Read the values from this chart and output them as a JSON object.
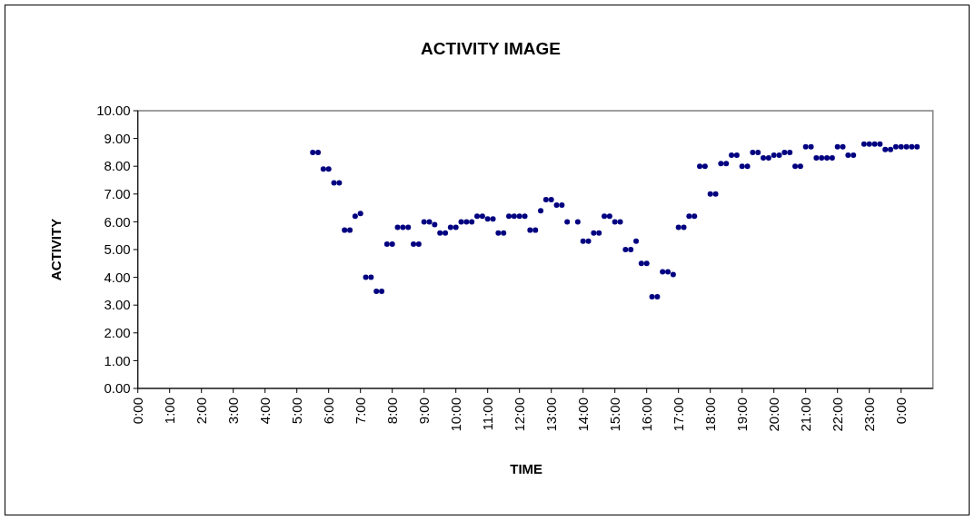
{
  "chart_data": {
    "type": "scatter",
    "title": "ACTIVITY IMAGE",
    "xlabel": "TIME",
    "ylabel": "ACTIVITY",
    "series": [
      {
        "color": "#000080",
        "x": [
          5.5,
          5.667,
          5.833,
          6,
          6.167,
          6.333,
          6.5,
          6.667,
          6.833,
          7,
          7.167,
          7.333,
          7.5,
          7.667,
          7.833,
          8,
          8.167,
          8.333,
          8.5,
          8.667,
          8.833,
          9,
          9.167,
          9.333,
          9.5,
          9.667,
          9.833,
          10,
          10.167,
          10.333,
          10.5,
          10.667,
          10.833,
          11,
          11.167,
          11.333,
          11.5,
          11.667,
          11.833,
          12,
          12.167,
          12.333,
          12.5,
          12.667,
          12.833,
          13,
          13.167,
          13.333,
          13.5,
          13.833,
          14,
          14.167,
          14.333,
          14.5,
          14.667,
          14.833,
          15,
          15.167,
          15.333,
          15.5,
          15.667,
          15.833,
          16,
          16.167,
          16.333,
          16.5,
          16.667,
          16.833,
          17,
          17.167,
          17.333,
          17.5,
          17.667,
          17.833,
          18,
          18.167,
          18.333,
          18.5,
          18.667,
          18.833,
          19,
          19.167,
          19.333,
          19.5,
          19.667,
          19.833,
          20,
          20.167,
          20.333,
          20.5,
          20.667,
          20.833,
          21,
          21.167,
          21.333,
          21.5,
          21.667,
          21.833,
          22,
          22.167,
          22.333,
          22.5,
          22.833,
          23,
          23.167,
          23.333,
          23.5,
          23.667,
          23.833,
          24,
          24.167,
          24.333,
          24.5
        ],
        "values": [
          8.5,
          8.5,
          7.9,
          7.9,
          7.4,
          7.4,
          5.7,
          5.7,
          6.2,
          6.3,
          4.0,
          4.0,
          3.5,
          3.5,
          5.2,
          5.2,
          5.8,
          5.8,
          5.8,
          5.2,
          5.2,
          6.0,
          6.0,
          5.9,
          5.6,
          5.6,
          5.8,
          5.8,
          6.0,
          6.0,
          6.0,
          6.2,
          6.2,
          6.1,
          6.1,
          5.6,
          5.6,
          6.2,
          6.2,
          6.2,
          6.2,
          5.7,
          5.7,
          6.4,
          6.8,
          6.8,
          6.6,
          6.6,
          6.0,
          6.0,
          5.3,
          5.3,
          5.6,
          5.6,
          6.2,
          6.2,
          6.0,
          6.0,
          5.0,
          5.0,
          5.3,
          4.5,
          4.5,
          3.3,
          3.3,
          4.2,
          4.2,
          4.1,
          5.8,
          5.8,
          6.2,
          6.2,
          8.0,
          8.0,
          7.0,
          7.0,
          8.1,
          8.1,
          8.4,
          8.4,
          8.0,
          8.0,
          8.5,
          8.5,
          8.3,
          8.3,
          8.4,
          8.4,
          8.5,
          8.5,
          8.0,
          8.0,
          8.7,
          8.7,
          8.3,
          8.3,
          8.3,
          8.3,
          8.7,
          8.7,
          8.4,
          8.4,
          8.8,
          8.8,
          8.8,
          8.8,
          8.6,
          8.6,
          8.7,
          8.7,
          8.7,
          8.7,
          8.7
        ]
      }
    ],
    "xlim": [
      0,
      25
    ],
    "xticks": [
      {
        "value": 0,
        "label": "0:00"
      },
      {
        "value": 1,
        "label": "1:00"
      },
      {
        "value": 2,
        "label": "2:00"
      },
      {
        "value": 3,
        "label": "3:00"
      },
      {
        "value": 4,
        "label": "4:00"
      },
      {
        "value": 5,
        "label": "5:00"
      },
      {
        "value": 6,
        "label": "6:00"
      },
      {
        "value": 7,
        "label": "7:00"
      },
      {
        "value": 8,
        "label": "8:00"
      },
      {
        "value": 9,
        "label": "9:00"
      },
      {
        "value": 10,
        "label": "10:00"
      },
      {
        "value": 11,
        "label": "11:00"
      },
      {
        "value": 12,
        "label": "12:00"
      },
      {
        "value": 13,
        "label": "13:00"
      },
      {
        "value": 14,
        "label": "14:00"
      },
      {
        "value": 15,
        "label": "15:00"
      },
      {
        "value": 16,
        "label": "16:00"
      },
      {
        "value": 17,
        "label": "17:00"
      },
      {
        "value": 18,
        "label": "18:00"
      },
      {
        "value": 19,
        "label": "19:00"
      },
      {
        "value": 20,
        "label": "20:00"
      },
      {
        "value": 21,
        "label": "21:00"
      },
      {
        "value": 22,
        "label": "22:00"
      },
      {
        "value": 23,
        "label": "23:00"
      },
      {
        "value": 24,
        "label": "0:00"
      }
    ],
    "ylim": [
      0,
      10
    ],
    "yticks": [
      {
        "value": 0,
        "label": "0.00"
      },
      {
        "value": 1,
        "label": "1.00"
      },
      {
        "value": 2,
        "label": "2.00"
      },
      {
        "value": 3,
        "label": "3.00"
      },
      {
        "value": 4,
        "label": "4.00"
      },
      {
        "value": 5,
        "label": "5.00"
      },
      {
        "value": 6,
        "label": "6.00"
      },
      {
        "value": 7,
        "label": "7.00"
      },
      {
        "value": 8,
        "label": "8.00"
      },
      {
        "value": 9,
        "label": "9.00"
      },
      {
        "value": 10,
        "label": "10.00"
      }
    ],
    "grid": false,
    "marker": "circle"
  }
}
